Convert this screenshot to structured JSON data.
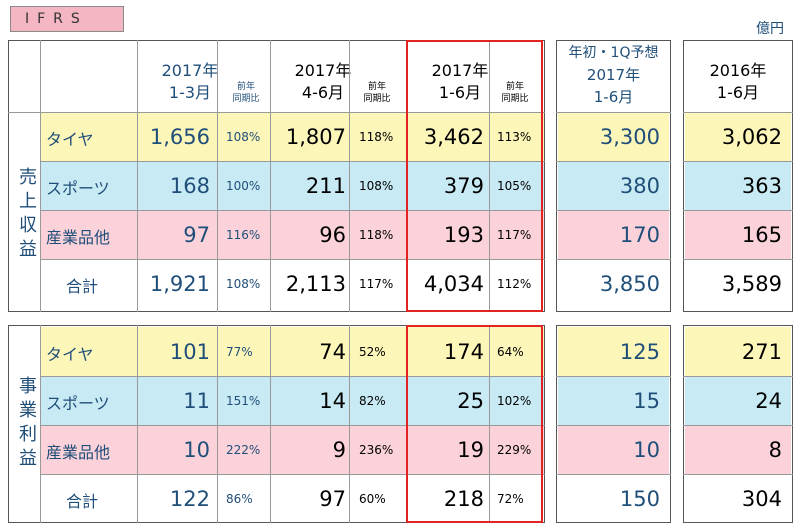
{
  "header": {
    "badge": "IFRS",
    "unit": "億円"
  },
  "columns": {
    "q1": {
      "year": "2017年",
      "period": "1-3月",
      "ratio_l1": "前年",
      "ratio_l2": "同期比"
    },
    "q2": {
      "year": "2017年",
      "period": "4-6月",
      "ratio_l1": "前年",
      "ratio_l2": "同期比"
    },
    "h1": {
      "year": "2017年",
      "period": "1-6月",
      "ratio_l1": "前年",
      "ratio_l2": "同期比"
    },
    "forecast": {
      "line1": "年初・1Q予想",
      "line2": "2017年",
      "line3": "1-6月"
    },
    "prev": {
      "line1": "2016年",
      "line2": "1-6月"
    }
  },
  "sections": {
    "revenue": {
      "label": "売上収益",
      "rows": [
        {
          "name": "タイヤ",
          "q1": "1,656",
          "q1p": "108%",
          "q2": "1,807",
          "q2p": "118%",
          "h1": "3,462",
          "h1p": "113%",
          "fc": "3,300",
          "prev": "3,062"
        },
        {
          "name": "スポーツ",
          "q1": "168",
          "q1p": "100%",
          "q2": "211",
          "q2p": "108%",
          "h1": "379",
          "h1p": "105%",
          "fc": "380",
          "prev": "363"
        },
        {
          "name": "産業品他",
          "q1": "97",
          "q1p": "116%",
          "q2": "96",
          "q2p": "118%",
          "h1": "193",
          "h1p": "117%",
          "fc": "170",
          "prev": "165"
        },
        {
          "name": "合計",
          "q1": "1,921",
          "q1p": "108%",
          "q2": "2,113",
          "q2p": "117%",
          "h1": "4,034",
          "h1p": "112%",
          "fc": "3,850",
          "prev": "3,589"
        }
      ]
    },
    "profit": {
      "label": "事業利益",
      "rows": [
        {
          "name": "タイヤ",
          "q1": "101",
          "q1p": "77%",
          "q2": "74",
          "q2p": "52%",
          "h1": "174",
          "h1p": "64%",
          "fc": "125",
          "prev": "271"
        },
        {
          "name": "スポーツ",
          "q1": "11",
          "q1p": "151%",
          "q2": "14",
          "q2p": "82%",
          "h1": "25",
          "h1p": "102%",
          "fc": "15",
          "prev": "24"
        },
        {
          "name": "産業品他",
          "q1": "10",
          "q1p": "222%",
          "q2": "9",
          "q2p": "236%",
          "h1": "19",
          "h1p": "229%",
          "fc": "10",
          "prev": "8"
        },
        {
          "name": "合計",
          "q1": "122",
          "q1p": "86%",
          "q2": "97",
          "q2p": "60%",
          "h1": "218",
          "h1p": "72%",
          "fc": "150",
          "prev": "304"
        }
      ]
    }
  },
  "colors": {
    "tire": "#fdf6b9",
    "sports": "#c8eaf4",
    "industrial": "#fbd2da",
    "total": "#ffffff",
    "highlight": "#e32222",
    "blue_text": "#1f4e79"
  }
}
